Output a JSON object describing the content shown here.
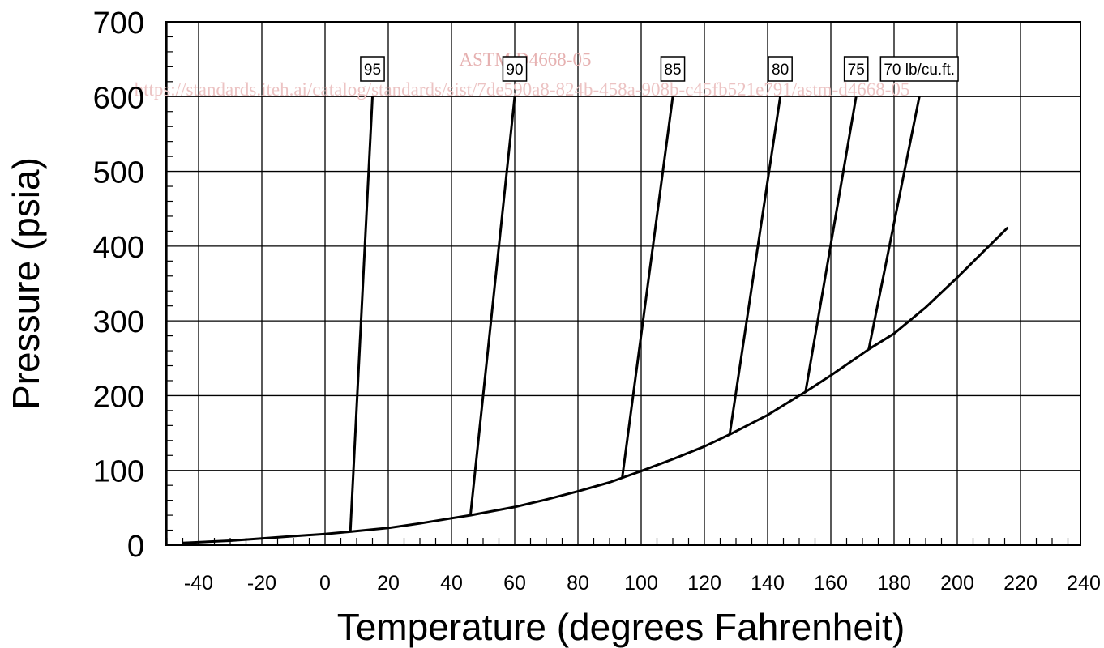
{
  "watermark": {
    "title": "ASTM D4668-05",
    "url": "https://standards.iteh.ai/catalog/standards/sist/7de590a8-824b-458a-908b-c45fb521e791/astm-d4668-05"
  },
  "chart_data": {
    "type": "line",
    "xlabel": "Temperature  (degrees Fahrenheit)",
    "ylabel": "Pressure  (psia)",
    "xlim": [
      -50,
      240
    ],
    "ylim": [
      0,
      700
    ],
    "x_ticks": [
      -40,
      -20,
      0,
      20,
      40,
      60,
      80,
      100,
      120,
      140,
      160,
      180,
      200,
      220,
      240
    ],
    "y_ticks": [
      0,
      100,
      200,
      300,
      400,
      500,
      600,
      700
    ],
    "grid": true,
    "series": [
      {
        "name": "",
        "points": [
          [
            -45,
            3
          ],
          [
            -30,
            6
          ],
          [
            -20,
            9
          ],
          [
            -10,
            12
          ],
          [
            0,
            15
          ],
          [
            8,
            18
          ],
          [
            20,
            23
          ],
          [
            30,
            29
          ],
          [
            40,
            36
          ],
          [
            46,
            40
          ],
          [
            60,
            51
          ],
          [
            70,
            61
          ],
          [
            80,
            72
          ],
          [
            90,
            84
          ],
          [
            94,
            90
          ],
          [
            100,
            99
          ],
          [
            110,
            115
          ],
          [
            120,
            132
          ],
          [
            128,
            148
          ],
          [
            140,
            174
          ],
          [
            150,
            200
          ],
          [
            152,
            205
          ],
          [
            160,
            227
          ],
          [
            170,
            256
          ],
          [
            172,
            262
          ],
          [
            180,
            283
          ],
          [
            190,
            318
          ],
          [
            200,
            358
          ],
          [
            210,
            400
          ],
          [
            216,
            425
          ]
        ]
      },
      {
        "name": "95",
        "points": [
          [
            8,
            18
          ],
          [
            15,
            600
          ]
        ]
      },
      {
        "name": "90",
        "points": [
          [
            46,
            40
          ],
          [
            60,
            600
          ]
        ]
      },
      {
        "name": "85",
        "points": [
          [
            94,
            90
          ],
          [
            110,
            600
          ]
        ]
      },
      {
        "name": "80",
        "points": [
          [
            128,
            148
          ],
          [
            144,
            600
          ]
        ]
      },
      {
        "name": "75",
        "points": [
          [
            152,
            205
          ],
          [
            168,
            600
          ]
        ]
      },
      {
        "name": "70 lb/cu.ft.",
        "points": [
          [
            172,
            262
          ],
          [
            188,
            600
          ]
        ]
      }
    ]
  }
}
